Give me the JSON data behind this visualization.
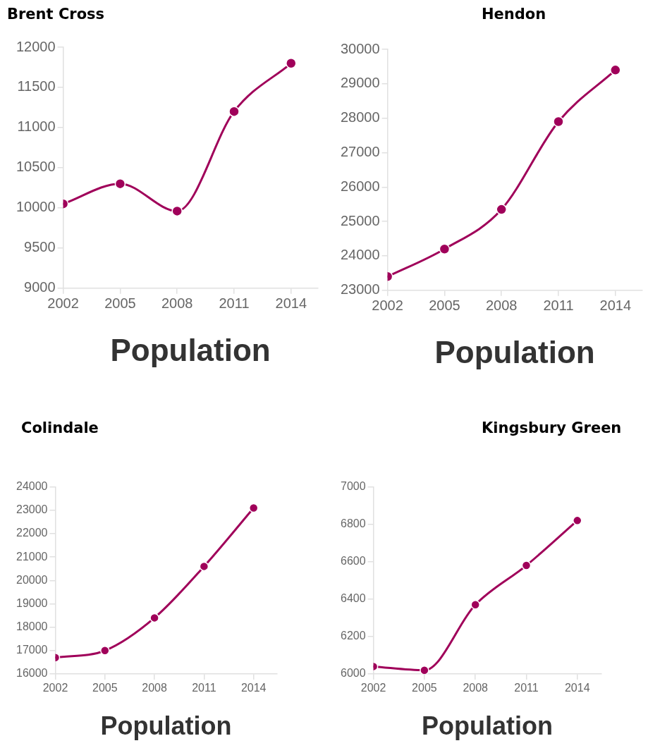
{
  "chart_data": [
    {
      "type": "line",
      "title": "Brent Cross",
      "xlabel": "Population",
      "x": [
        2002,
        2005,
        2008,
        2011,
        2014
      ],
      "values": [
        10050,
        10300,
        9960,
        11200,
        11800
      ],
      "color": "#a0005a",
      "xlim": [
        2002,
        2015.4
      ],
      "xticks": [
        2002,
        2005,
        2008,
        2011,
        2014
      ],
      "ylim": [
        9000,
        12000
      ],
      "yticks": [
        9000,
        9500,
        10000,
        10500,
        11000,
        11500,
        12000
      ],
      "marker": "circle",
      "grid": false
    },
    {
      "type": "line",
      "title": "Hendon",
      "xlabel": "Population",
      "x": [
        2002,
        2005,
        2008,
        2011,
        2014
      ],
      "values": [
        23400,
        24200,
        25350,
        27900,
        29400
      ],
      "color": "#a0005a",
      "xlim": [
        2002,
        2015.4
      ],
      "xticks": [
        2002,
        2005,
        2008,
        2011,
        2014
      ],
      "ylim": [
        23000,
        30000
      ],
      "yticks": [
        23000,
        24000,
        25000,
        26000,
        27000,
        28000,
        29000,
        30000
      ],
      "marker": "circle",
      "grid": false
    },
    {
      "type": "line",
      "title": "Colindale",
      "xlabel": "Population",
      "x": [
        2002,
        2005,
        2008,
        2011,
        2014
      ],
      "values": [
        16700,
        17000,
        18400,
        20600,
        23100
      ],
      "color": "#a0005a",
      "xlim": [
        2002,
        2015.4
      ],
      "xticks": [
        2002,
        2005,
        2008,
        2011,
        2014
      ],
      "ylim": [
        16000,
        24000
      ],
      "yticks": [
        16000,
        17000,
        18000,
        19000,
        20000,
        21000,
        22000,
        23000,
        24000
      ],
      "marker": "circle",
      "grid": false
    },
    {
      "type": "line",
      "title": "Kingsbury Green",
      "xlabel": "Population",
      "x": [
        2002,
        2005,
        2008,
        2011,
        2014
      ],
      "values": [
        6040,
        6020,
        6370,
        6580,
        6820
      ],
      "color": "#a0005a",
      "xlim": [
        2002,
        2015.4
      ],
      "xticks": [
        2002,
        2005,
        2008,
        2011,
        2014
      ],
      "ylim": [
        6000,
        7000
      ],
      "yticks": [
        6000,
        6200,
        6400,
        6600,
        6800,
        7000
      ],
      "marker": "circle",
      "grid": false
    }
  ]
}
